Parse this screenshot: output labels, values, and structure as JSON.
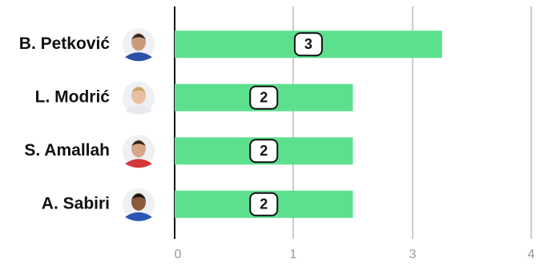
{
  "chart_data": {
    "type": "barh",
    "categories": [
      "B. Petković",
      "L. Modrić",
      "S. Amallah",
      "A. Sabiri"
    ],
    "values": [
      3,
      2,
      2,
      2
    ],
    "color": "#5de08e",
    "xlim": [
      0,
      4
    ],
    "xticks": [
      0,
      {
        "value": 1.33,
        "label": "1"
      },
      {
        "value": 2.67,
        "label": "3"
      },
      4
    ],
    "grid": true
  }
}
